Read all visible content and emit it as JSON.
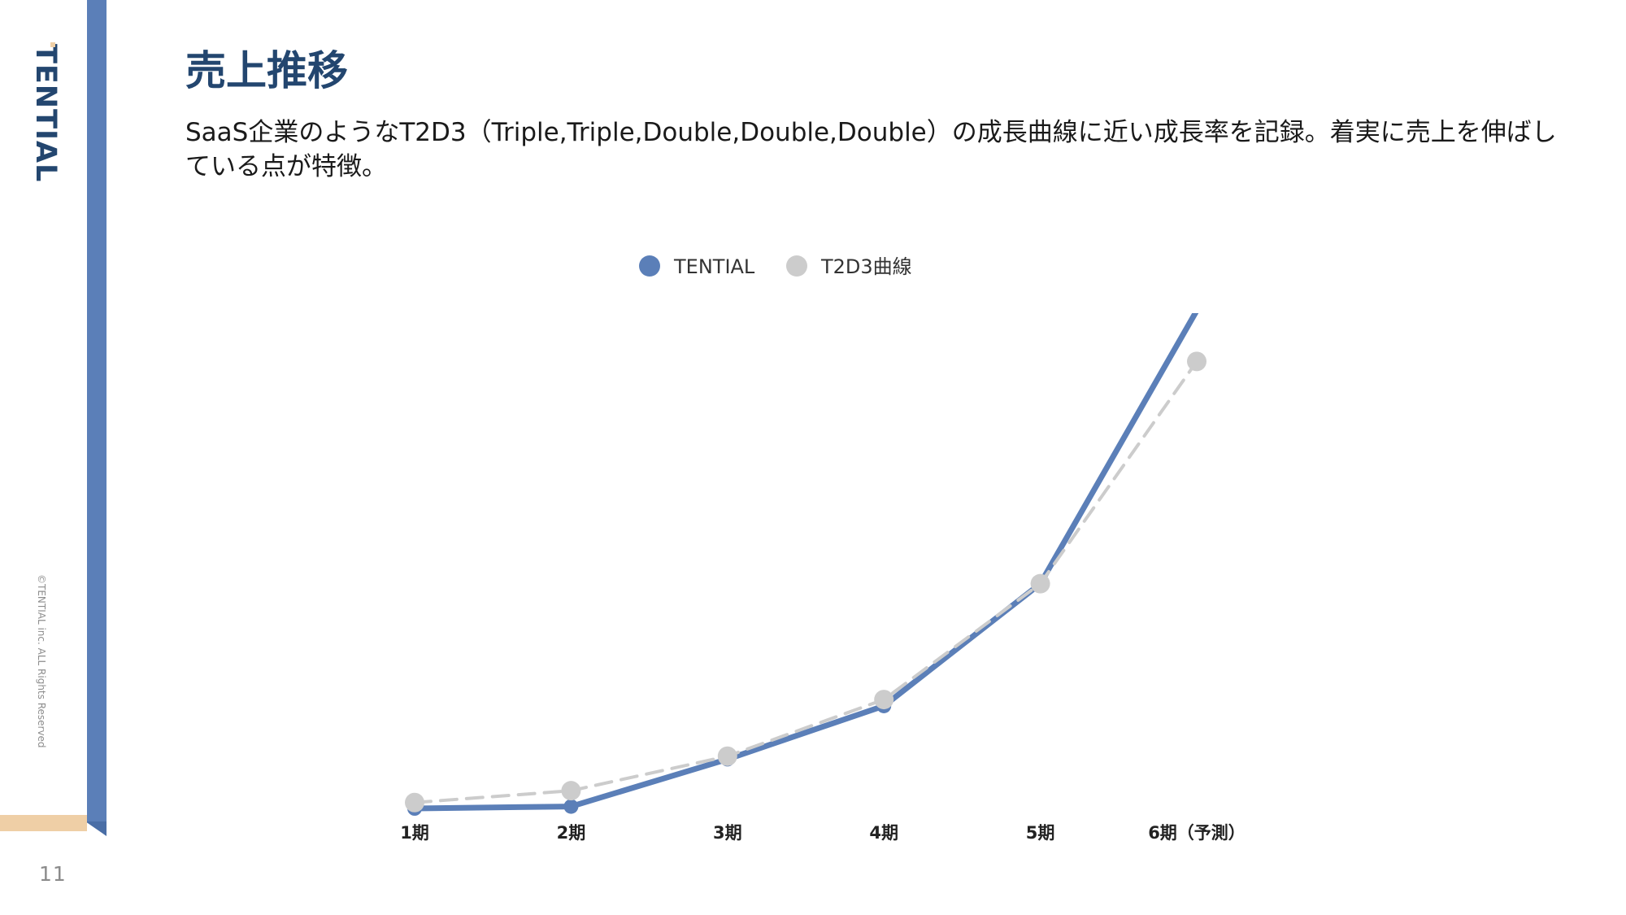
{
  "page": {
    "title": "売上推移",
    "description": "SaaS企業のようなT2D3（Triple,Triple,Double,Double,Double）の成長曲線に近い成長率を記録。着実に売上を伸ばしている点が特徴。",
    "page_number": "11",
    "logo_text": "TENTIAL",
    "copyright": "©TENTIAL inc. ALL Rights Reserved"
  },
  "colors": {
    "accent": "#5b7fb8",
    "brand_navy": "#23466f",
    "stripe": "#efcfa6",
    "t2d3_series": "#cccccc"
  },
  "chart_data": {
    "type": "line",
    "title": "",
    "xlabel": "",
    "ylabel": "",
    "categories": [
      "1期",
      "2期",
      "3期",
      "4期",
      "5期",
      "6期（予測）"
    ],
    "ylim": [
      0,
      100
    ],
    "grid": false,
    "legend": "top-center",
    "series": [
      {
        "name": "TENTIAL",
        "color": "#5b7fb8",
        "style": "solid",
        "values": [
          0.0,
          0.4,
          10.0,
          20.8,
          45.6,
          101.0
        ],
        "note": "last value extends above plot area (clipped)"
      },
      {
        "name": "T2D3曲線",
        "color": "#cccccc",
        "style": "dashed",
        "values": [
          1.2,
          3.6,
          10.6,
          22.1,
          45.6,
          90.7
        ]
      }
    ]
  }
}
